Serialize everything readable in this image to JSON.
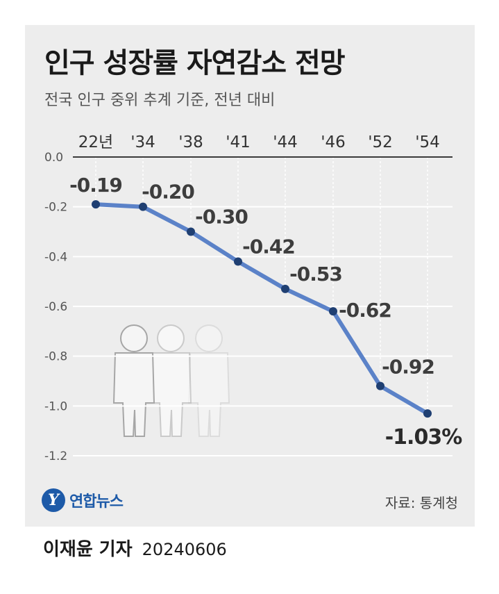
{
  "header": {
    "title": "인구 성장률 자연감소 전망",
    "subtitle": "전국 인구 중위 추계 기준, 전년 대비"
  },
  "chart_data": {
    "type": "line",
    "title": "인구 성장률 자연감소 전망",
    "subtitle": "전국 인구 중위 추계 기준, 전년 대비",
    "categories": [
      "22년",
      "'34",
      "'38",
      "'41",
      "'44",
      "'46",
      "'52",
      "'54"
    ],
    "series": [
      {
        "values": [
          -0.19,
          -0.2,
          -0.3,
          -0.42,
          -0.53,
          -0.62,
          -0.92,
          -1.03
        ],
        "labels": [
          "-0.19",
          "-0.20",
          "-0.30",
          "-0.42",
          "-0.53",
          "-0.62",
          "-0.92",
          "-1.03%"
        ]
      }
    ],
    "y_ticks": [
      "0.0",
      "-0.2",
      "-0.4",
      "-0.6",
      "-0.8",
      "-1.0",
      "-1.2"
    ],
    "ylim": [
      -1.2,
      0
    ],
    "x_axis_position": "top",
    "grid": true,
    "line_color": "#5b82c8",
    "marker_color": "#1f3f72",
    "grid_color": "#ffffff"
  },
  "footer": {
    "logo_text": "연합뉴스",
    "logo_mark": "Y",
    "source": "자료: 통계청",
    "reporter": "이재윤 기자",
    "date": "20240606"
  }
}
